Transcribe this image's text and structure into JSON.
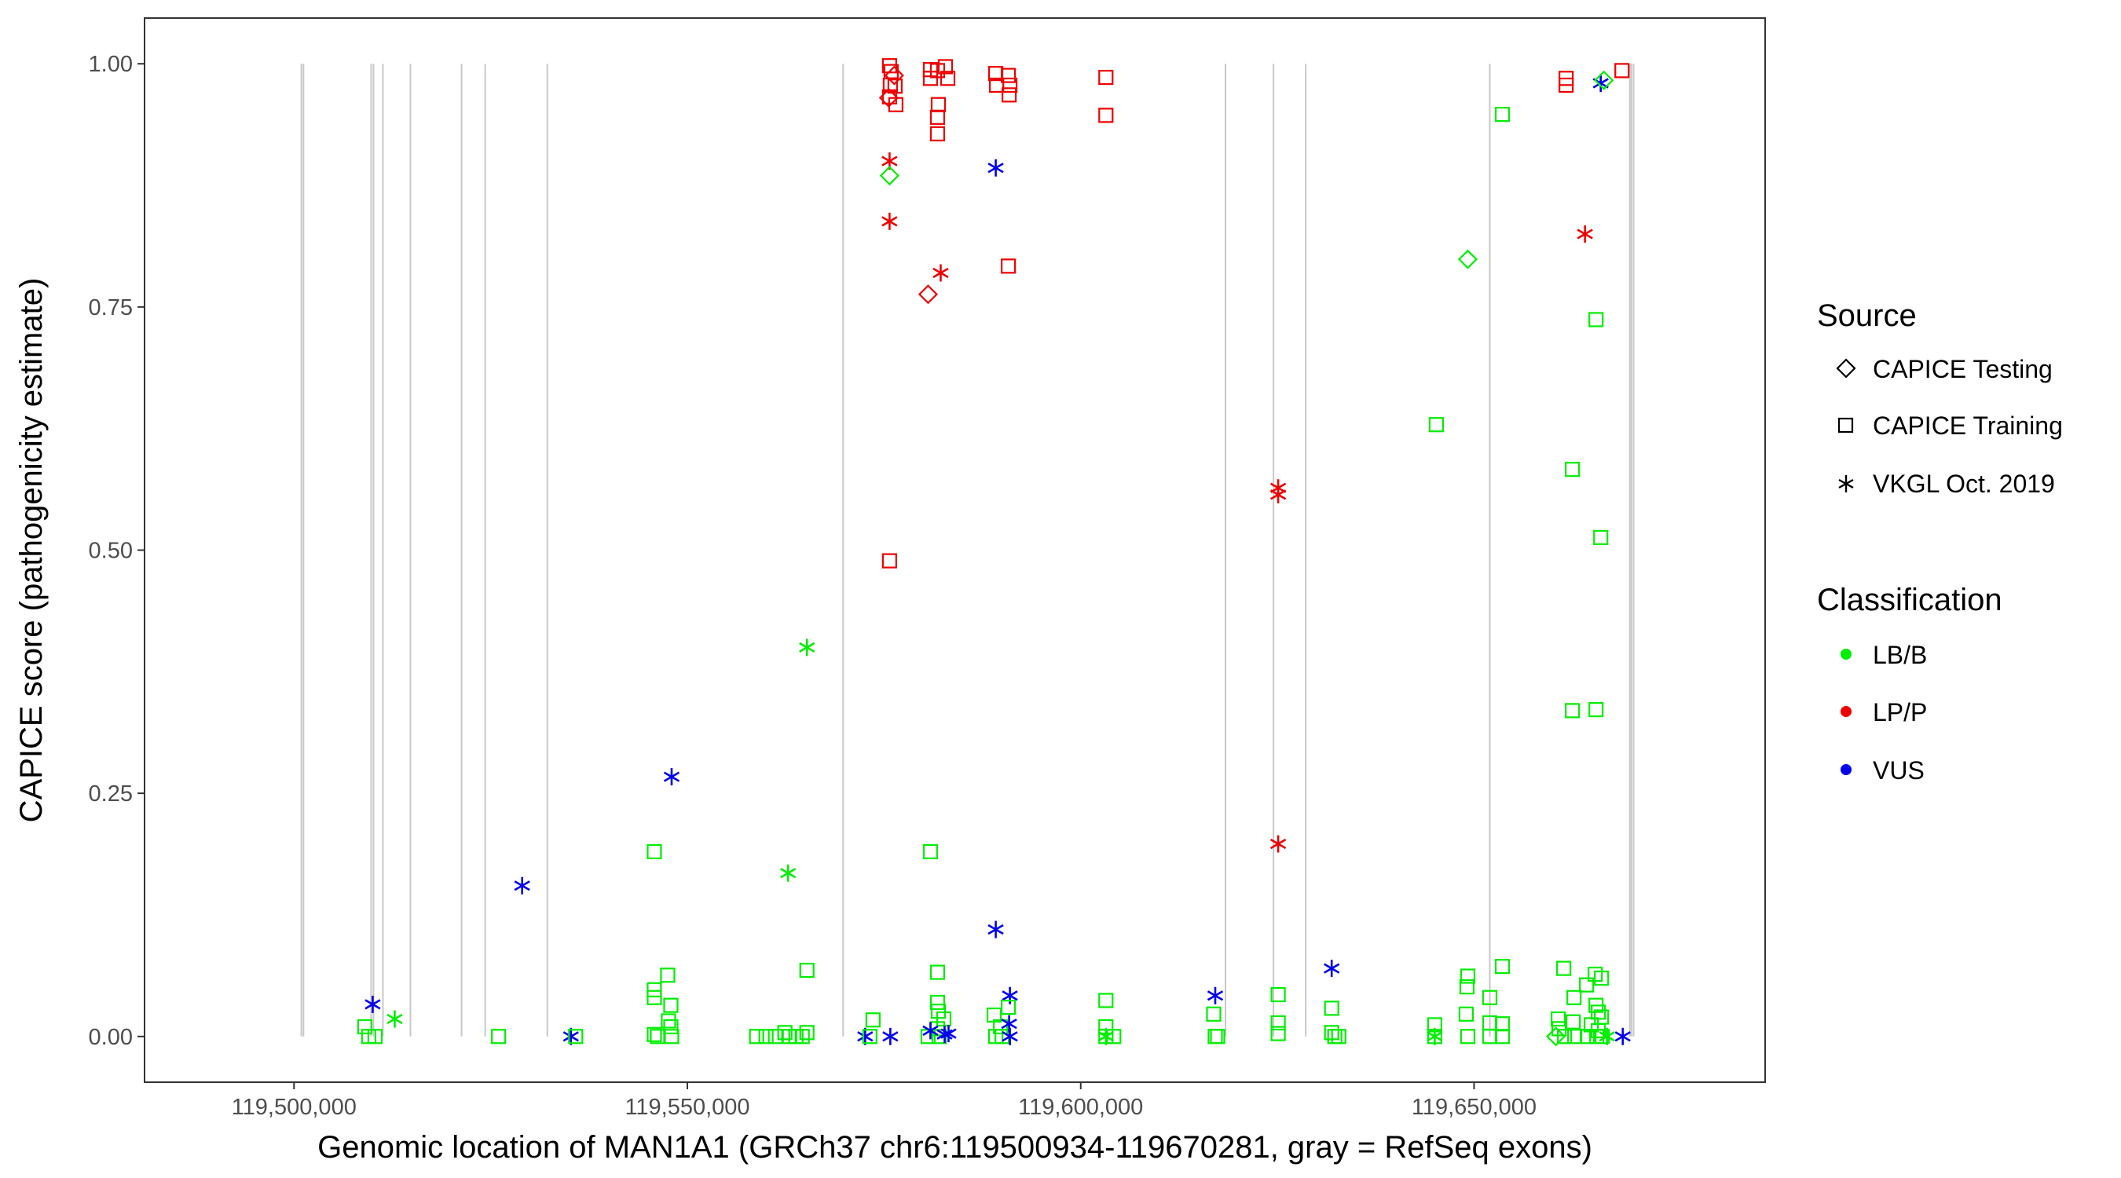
{
  "chart_data": {
    "type": "scatter",
    "title": "",
    "xlabel": "Genomic location of MAN1A1 (GRCh37 chr6:119500934-119670281, gray = RefSeq exons)",
    "ylabel": "CAPICE score (pathogenicity estimate)",
    "xlim": [
      119481000,
      119687000
    ],
    "ylim": [
      -0.047,
      1.047
    ],
    "x_ticks": [
      {
        "value": 119500000,
        "label": "119,500,000"
      },
      {
        "value": 119550000,
        "label": "119,550,000"
      },
      {
        "value": 119600000,
        "label": "119,600,000"
      },
      {
        "value": 119650000,
        "label": "119,650,000"
      }
    ],
    "y_ticks": [
      {
        "value": 0.0,
        "label": "0.00"
      },
      {
        "value": 0.25,
        "label": "0.25"
      },
      {
        "value": 0.5,
        "label": "0.50"
      },
      {
        "value": 0.75,
        "label": "0.75"
      },
      {
        "value": 1.0,
        "label": "1.00"
      }
    ],
    "grid": false,
    "legend_position": "right",
    "exon_color": "#c8c8c8",
    "exons": [
      119500934,
      119501200,
      119509800,
      119510100,
      119511300,
      119514800,
      119521300,
      119524300,
      119532200,
      119569800,
      119618400,
      119624500,
      119628600,
      119652000,
      119669800,
      119670000,
      119670281
    ],
    "legend": {
      "source_title": "Source",
      "source_entries": [
        {
          "shape": "diamond",
          "label": "CAPICE Testing"
        },
        {
          "shape": "square",
          "label": "CAPICE Training"
        },
        {
          "shape": "asterisk",
          "label": "VKGL Oct. 2019"
        }
      ],
      "class_title": "Classification",
      "class_entries": [
        {
          "color": "#00ee00",
          "label": "LB/B"
        },
        {
          "color": "#ee0000",
          "label": "LP/P"
        },
        {
          "color": "#0000ee",
          "label": "VUS"
        }
      ]
    },
    "colors": {
      "LB/B": "#00ee00",
      "LP/P": "#ee0000",
      "VUS": "#0000ee"
    },
    "points": [
      {
        "x": 119509000,
        "y": 0.01,
        "source": "training",
        "class": "LB/B"
      },
      {
        "x": 119509500,
        "y": 0.0,
        "source": "training",
        "class": "LB/B"
      },
      {
        "x": 119510300,
        "y": 0.0,
        "source": "training",
        "class": "LB/B"
      },
      {
        "x": 119510000,
        "y": 0.033,
        "source": "vkgl",
        "class": "VUS"
      },
      {
        "x": 119512800,
        "y": 0.018,
        "source": "vkgl",
        "class": "LB/B"
      },
      {
        "x": 119526000,
        "y": 0.0,
        "source": "training",
        "class": "LB/B"
      },
      {
        "x": 119529000,
        "y": 0.155,
        "source": "vkgl",
        "class": "VUS"
      },
      {
        "x": 119535200,
        "y": 0.0,
        "source": "vkgl",
        "class": "VUS"
      },
      {
        "x": 119535800,
        "y": 0.0,
        "source": "training",
        "class": "LB/B"
      },
      {
        "x": 119545800,
        "y": 0.19,
        "source": "training",
        "class": "LB/B"
      },
      {
        "x": 119545800,
        "y": 0.048,
        "source": "training",
        "class": "LB/B"
      },
      {
        "x": 119545800,
        "y": 0.04,
        "source": "training",
        "class": "LB/B"
      },
      {
        "x": 119545800,
        "y": 0.002,
        "source": "training",
        "class": "LB/B"
      },
      {
        "x": 119546200,
        "y": 0.0,
        "source": "training",
        "class": "LB/B"
      },
      {
        "x": 119547500,
        "y": 0.063,
        "source": "training",
        "class": "LB/B"
      },
      {
        "x": 119547900,
        "y": 0.032,
        "source": "training",
        "class": "LB/B"
      },
      {
        "x": 119547600,
        "y": 0.016,
        "source": "training",
        "class": "LB/B"
      },
      {
        "x": 119547900,
        "y": 0.01,
        "source": "training",
        "class": "LB/B"
      },
      {
        "x": 119548000,
        "y": 0.0,
        "source": "training",
        "class": "LB/B"
      },
      {
        "x": 119548000,
        "y": 0.267,
        "source": "vkgl",
        "class": "VUS"
      },
      {
        "x": 119562800,
        "y": 0.168,
        "source": "vkgl",
        "class": "LB/B"
      },
      {
        "x": 119565200,
        "y": 0.4,
        "source": "vkgl",
        "class": "LB/B"
      },
      {
        "x": 119565200,
        "y": 0.068,
        "source": "training",
        "class": "LB/B"
      },
      {
        "x": 119558800,
        "y": 0.0,
        "source": "training",
        "class": "LB/B"
      },
      {
        "x": 119560000,
        "y": 0.0,
        "source": "training",
        "class": "LB/B"
      },
      {
        "x": 119561200,
        "y": 0.0,
        "source": "training",
        "class": "LB/B"
      },
      {
        "x": 119562400,
        "y": 0.004,
        "source": "training",
        "class": "LB/B"
      },
      {
        "x": 119563000,
        "y": 0.0,
        "source": "training",
        "class": "LB/B"
      },
      {
        "x": 119563800,
        "y": 0.0,
        "source": "training",
        "class": "LB/B"
      },
      {
        "x": 119564600,
        "y": 0.0,
        "source": "training",
        "class": "LB/B"
      },
      {
        "x": 119565200,
        "y": 0.004,
        "source": "training",
        "class": "LB/B"
      },
      {
        "x": 119572600,
        "y": 0.0,
        "source": "vkgl",
        "class": "VUS"
      },
      {
        "x": 119573600,
        "y": 0.017,
        "source": "training",
        "class": "LB/B"
      },
      {
        "x": 119573200,
        "y": 0.0,
        "source": "training",
        "class": "LB/B"
      },
      {
        "x": 119575800,
        "y": 0.0,
        "source": "vkgl",
        "class": "VUS"
      },
      {
        "x": 119575700,
        "y": 0.998,
        "source": "training",
        "class": "LP/P"
      },
      {
        "x": 119575900,
        "y": 0.992,
        "source": "training",
        "class": "LP/P"
      },
      {
        "x": 119575800,
        "y": 0.978,
        "source": "training",
        "class": "LP/P"
      },
      {
        "x": 119576300,
        "y": 0.988,
        "source": "testing",
        "class": "LP/P"
      },
      {
        "x": 119575700,
        "y": 0.966,
        "source": "training",
        "class": "LP/P"
      },
      {
        "x": 119575600,
        "y": 0.965,
        "source": "testing",
        "class": "LP/P"
      },
      {
        "x": 119576500,
        "y": 0.958,
        "source": "training",
        "class": "LP/P"
      },
      {
        "x": 119576400,
        "y": 0.977,
        "source": "training",
        "class": "LP/P"
      },
      {
        "x": 119575700,
        "y": 0.9,
        "source": "vkgl",
        "class": "LP/P"
      },
      {
        "x": 119575700,
        "y": 0.885,
        "source": "testing",
        "class": "LB/B"
      },
      {
        "x": 119575700,
        "y": 0.838,
        "source": "vkgl",
        "class": "LP/P"
      },
      {
        "x": 119575700,
        "y": 0.489,
        "source": "training",
        "class": "LP/P"
      },
      {
        "x": 119580900,
        "y": 0.994,
        "source": "training",
        "class": "LP/P"
      },
      {
        "x": 119580900,
        "y": 0.985,
        "source": "training",
        "class": "LP/P"
      },
      {
        "x": 119581800,
        "y": 0.993,
        "source": "training",
        "class": "LP/P"
      },
      {
        "x": 119582800,
        "y": 0.997,
        "source": "training",
        "class": "LP/P"
      },
      {
        "x": 119583100,
        "y": 0.985,
        "source": "training",
        "class": "LP/P"
      },
      {
        "x": 119581900,
        "y": 0.958,
        "source": "training",
        "class": "LP/P"
      },
      {
        "x": 119581800,
        "y": 0.945,
        "source": "training",
        "class": "LP/P"
      },
      {
        "x": 119581800,
        "y": 0.928,
        "source": "training",
        "class": "LP/P"
      },
      {
        "x": 119582200,
        "y": 0.785,
        "source": "vkgl",
        "class": "LP/P"
      },
      {
        "x": 119580600,
        "y": 0.763,
        "source": "testing",
        "class": "LP/P"
      },
      {
        "x": 119580900,
        "y": 0.19,
        "source": "training",
        "class": "LB/B"
      },
      {
        "x": 119581800,
        "y": 0.066,
        "source": "training",
        "class": "LB/B"
      },
      {
        "x": 119581800,
        "y": 0.035,
        "source": "training",
        "class": "LB/B"
      },
      {
        "x": 119581900,
        "y": 0.026,
        "source": "training",
        "class": "LB/B"
      },
      {
        "x": 119582600,
        "y": 0.018,
        "source": "training",
        "class": "LB/B"
      },
      {
        "x": 119581800,
        "y": 0.008,
        "source": "training",
        "class": "LB/B"
      },
      {
        "x": 119580600,
        "y": 0.0,
        "source": "training",
        "class": "LB/B"
      },
      {
        "x": 119582000,
        "y": 0.0,
        "source": "training",
        "class": "LB/B"
      },
      {
        "x": 119580900,
        "y": 0.006,
        "source": "vkgl",
        "class": "VUS"
      },
      {
        "x": 119582700,
        "y": 0.002,
        "source": "vkgl",
        "class": "VUS"
      },
      {
        "x": 119583200,
        "y": 0.003,
        "source": "vkgl",
        "class": "VUS"
      },
      {
        "x": 119589200,
        "y": 0.99,
        "source": "training",
        "class": "LP/P"
      },
      {
        "x": 119589300,
        "y": 0.978,
        "source": "training",
        "class": "LP/P"
      },
      {
        "x": 119590800,
        "y": 0.988,
        "source": "training",
        "class": "LP/P"
      },
      {
        "x": 119591000,
        "y": 0.978,
        "source": "training",
        "class": "LP/P"
      },
      {
        "x": 119590900,
        "y": 0.968,
        "source": "training",
        "class": "LP/P"
      },
      {
        "x": 119589200,
        "y": 0.893,
        "source": "vkgl",
        "class": "VUS"
      },
      {
        "x": 119590800,
        "y": 0.792,
        "source": "training",
        "class": "LP/P"
      },
      {
        "x": 119589200,
        "y": 0.11,
        "source": "vkgl",
        "class": "VUS"
      },
      {
        "x": 119591000,
        "y": 0.042,
        "source": "vkgl",
        "class": "VUS"
      },
      {
        "x": 119590800,
        "y": 0.03,
        "source": "training",
        "class": "LB/B"
      },
      {
        "x": 119589000,
        "y": 0.022,
        "source": "training",
        "class": "LB/B"
      },
      {
        "x": 119589800,
        "y": 0.01,
        "source": "training",
        "class": "LB/B"
      },
      {
        "x": 119589200,
        "y": 0.0,
        "source": "training",
        "class": "LB/B"
      },
      {
        "x": 119590000,
        "y": 0.0,
        "source": "training",
        "class": "LB/B"
      },
      {
        "x": 119590900,
        "y": 0.013,
        "source": "vkgl",
        "class": "VUS"
      },
      {
        "x": 119591000,
        "y": 0.0,
        "source": "vkgl",
        "class": "VUS"
      },
      {
        "x": 119603200,
        "y": 0.986,
        "source": "training",
        "class": "LP/P"
      },
      {
        "x": 119603200,
        "y": 0.947,
        "source": "training",
        "class": "LP/P"
      },
      {
        "x": 119603200,
        "y": 0.037,
        "source": "training",
        "class": "LB/B"
      },
      {
        "x": 119603200,
        "y": 0.01,
        "source": "training",
        "class": "LB/B"
      },
      {
        "x": 119603200,
        "y": 0.0,
        "source": "training",
        "class": "LB/B"
      },
      {
        "x": 119604200,
        "y": 0.0,
        "source": "training",
        "class": "LB/B"
      },
      {
        "x": 119603200,
        "y": 0.0,
        "source": "vkgl",
        "class": "LB/B"
      },
      {
        "x": 119617100,
        "y": 0.042,
        "source": "vkgl",
        "class": "VUS"
      },
      {
        "x": 119616900,
        "y": 0.023,
        "source": "training",
        "class": "LB/B"
      },
      {
        "x": 119617100,
        "y": 0.0,
        "source": "training",
        "class": "LB/B"
      },
      {
        "x": 119617400,
        "y": 0.0,
        "source": "training",
        "class": "LB/B"
      },
      {
        "x": 119625100,
        "y": 0.564,
        "source": "vkgl",
        "class": "LP/P"
      },
      {
        "x": 119625100,
        "y": 0.557,
        "source": "vkgl",
        "class": "LP/P"
      },
      {
        "x": 119625100,
        "y": 0.198,
        "source": "vkgl",
        "class": "LP/P"
      },
      {
        "x": 119625100,
        "y": 0.043,
        "source": "training",
        "class": "LB/B"
      },
      {
        "x": 119625100,
        "y": 0.014,
        "source": "training",
        "class": "LB/B"
      },
      {
        "x": 119625100,
        "y": 0.003,
        "source": "training",
        "class": "LB/B"
      },
      {
        "x": 119631900,
        "y": 0.07,
        "source": "vkgl",
        "class": "VUS"
      },
      {
        "x": 119631900,
        "y": 0.029,
        "source": "training",
        "class": "LB/B"
      },
      {
        "x": 119631900,
        "y": 0.004,
        "source": "training",
        "class": "LB/B"
      },
      {
        "x": 119632300,
        "y": 0.0,
        "source": "training",
        "class": "LB/B"
      },
      {
        "x": 119632800,
        "y": 0.0,
        "source": "training",
        "class": "LB/B"
      },
      {
        "x": 119645200,
        "y": 0.629,
        "source": "training",
        "class": "LB/B"
      },
      {
        "x": 119649200,
        "y": 0.799,
        "source": "testing",
        "class": "LB/B"
      },
      {
        "x": 119649200,
        "y": 0.062,
        "source": "training",
        "class": "LB/B"
      },
      {
        "x": 119649100,
        "y": 0.051,
        "source": "training",
        "class": "LB/B"
      },
      {
        "x": 119649000,
        "y": 0.023,
        "source": "training",
        "class": "LB/B"
      },
      {
        "x": 119649200,
        "y": 0.0,
        "source": "training",
        "class": "LB/B"
      },
      {
        "x": 119645000,
        "y": 0.012,
        "source": "training",
        "class": "LB/B"
      },
      {
        "x": 119645000,
        "y": 0.0,
        "source": "training",
        "class": "LB/B"
      },
      {
        "x": 119645000,
        "y": 0.0,
        "source": "vkgl",
        "class": "LB/B"
      },
      {
        "x": 119652000,
        "y": 0.04,
        "source": "training",
        "class": "LB/B"
      },
      {
        "x": 119652000,
        "y": 0.014,
        "source": "training",
        "class": "LB/B"
      },
      {
        "x": 119652000,
        "y": 0.0,
        "source": "training",
        "class": "LB/B"
      },
      {
        "x": 119653600,
        "y": 0.948,
        "source": "training",
        "class": "LB/B"
      },
      {
        "x": 119653600,
        "y": 0.072,
        "source": "training",
        "class": "LB/B"
      },
      {
        "x": 119653600,
        "y": 0.013,
        "source": "training",
        "class": "LB/B"
      },
      {
        "x": 119653600,
        "y": 0.0,
        "source": "training",
        "class": "LB/B"
      },
      {
        "x": 119661700,
        "y": 0.985,
        "source": "training",
        "class": "LP/P"
      },
      {
        "x": 119661700,
        "y": 0.978,
        "source": "training",
        "class": "LP/P"
      },
      {
        "x": 119664100,
        "y": 0.825,
        "source": "vkgl",
        "class": "LP/P"
      },
      {
        "x": 119665500,
        "y": 0.737,
        "source": "training",
        "class": "LB/B"
      },
      {
        "x": 119662500,
        "y": 0.583,
        "source": "training",
        "class": "LB/B"
      },
      {
        "x": 119666100,
        "y": 0.513,
        "source": "training",
        "class": "LB/B"
      },
      {
        "x": 119662500,
        "y": 0.335,
        "source": "training",
        "class": "LB/B"
      },
      {
        "x": 119665500,
        "y": 0.336,
        "source": "training",
        "class": "LB/B"
      },
      {
        "x": 119666100,
        "y": 0.98,
        "source": "vkgl",
        "class": "VUS"
      },
      {
        "x": 119666500,
        "y": 0.983,
        "source": "testing",
        "class": "LB/B"
      },
      {
        "x": 119668800,
        "y": 0.993,
        "source": "training",
        "class": "LP/P"
      },
      {
        "x": 119661400,
        "y": 0.07,
        "source": "training",
        "class": "LB/B"
      },
      {
        "x": 119665400,
        "y": 0.064,
        "source": "training",
        "class": "LB/B"
      },
      {
        "x": 119666200,
        "y": 0.06,
        "source": "training",
        "class": "LB/B"
      },
      {
        "x": 119664300,
        "y": 0.053,
        "source": "training",
        "class": "LB/B"
      },
      {
        "x": 119662700,
        "y": 0.04,
        "source": "training",
        "class": "LB/B"
      },
      {
        "x": 119665500,
        "y": 0.032,
        "source": "training",
        "class": "LB/B"
      },
      {
        "x": 119665800,
        "y": 0.025,
        "source": "training",
        "class": "LB/B"
      },
      {
        "x": 119666200,
        "y": 0.02,
        "source": "training",
        "class": "LB/B"
      },
      {
        "x": 119660700,
        "y": 0.018,
        "source": "training",
        "class": "LB/B"
      },
      {
        "x": 119662600,
        "y": 0.015,
        "source": "training",
        "class": "LB/B"
      },
      {
        "x": 119664900,
        "y": 0.012,
        "source": "training",
        "class": "LB/B"
      },
      {
        "x": 119660800,
        "y": 0.008,
        "source": "training",
        "class": "LB/B"
      },
      {
        "x": 119665800,
        "y": 0.006,
        "source": "training",
        "class": "LB/B"
      },
      {
        "x": 119661500,
        "y": 0.0,
        "source": "training",
        "class": "LB/B"
      },
      {
        "x": 119662800,
        "y": 0.0,
        "source": "training",
        "class": "LB/B"
      },
      {
        "x": 119664400,
        "y": 0.0,
        "source": "training",
        "class": "LB/B"
      },
      {
        "x": 119665600,
        "y": 0.0,
        "source": "training",
        "class": "LB/B"
      },
      {
        "x": 119666300,
        "y": 0.0,
        "source": "training",
        "class": "LB/B"
      },
      {
        "x": 119660400,
        "y": 0.0,
        "source": "testing",
        "class": "LB/B"
      },
      {
        "x": 119666900,
        "y": 0.0,
        "source": "vkgl",
        "class": "LB/B"
      },
      {
        "x": 119668900,
        "y": 0.0,
        "source": "vkgl",
        "class": "VUS"
      }
    ]
  }
}
